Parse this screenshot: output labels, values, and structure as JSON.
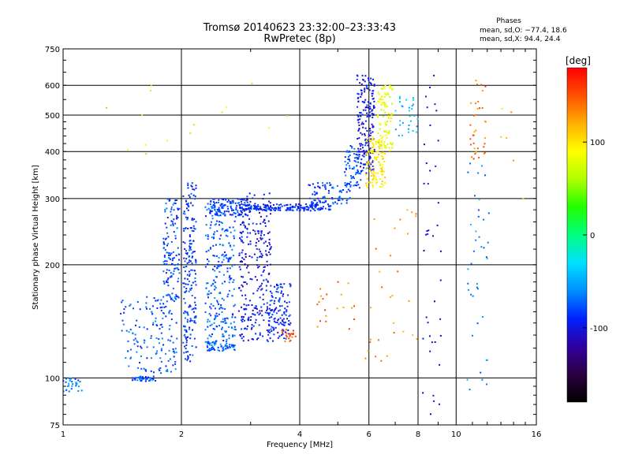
{
  "chart_data": {
    "type": "scatter",
    "title": "Tromsø 20140623 23:32:00–23:33:43",
    "subtitle": "RwPretec (8p)",
    "xlabel": "Frequency [MHz]",
    "ylabel": "Stationary phase Virtual Height [km]",
    "x_scale": "log",
    "y_scale": "log",
    "xlim": [
      1,
      16
    ],
    "ylim": [
      75,
      750
    ],
    "x_ticks": [
      1,
      2,
      4,
      6,
      8,
      10,
      16
    ],
    "x_tick_labels": [
      "1",
      "2",
      "4",
      "6",
      "8",
      "10",
      "16"
    ],
    "y_ticks": [
      75,
      100,
      200,
      300,
      400,
      500,
      600,
      750
    ],
    "y_tick_labels": [
      "75",
      "100",
      "200",
      "300",
      "400",
      "500",
      "600",
      "750"
    ],
    "grid": true,
    "phases_info": {
      "title": "Phases",
      "line_o": "mean, sd,O: −77.4, 18.6",
      "line_x": "mean, sd,X:  94.4, 24.4"
    },
    "colorbar": {
      "unit_label": "[deg]",
      "range": [
        -180,
        180
      ],
      "tick_values": [
        100,
        0,
        -100
      ],
      "tick_labels": [
        "100",
        "0",
        "-100"
      ],
      "colors": [
        "#000000",
        "#2a0040",
        "#3000a0",
        "#0020ff",
        "#0090ff",
        "#00e0ff",
        "#00ff80",
        "#20ff00",
        "#b0ff00",
        "#ffff00",
        "#ffb000",
        "#ff5000",
        "#ff0000"
      ]
    },
    "series": [
      {
        "clusters": [
          {
            "f": [
              1.0,
              1.12
            ],
            "h": [
              92,
              100
            ],
            "phase": -70,
            "n": 30
          },
          {
            "f": [
              1.5,
              1.72
            ],
            "h": [
              98,
              101
            ],
            "phase": -75,
            "n": 40
          },
          {
            "f": [
              1.4,
              1.95
            ],
            "h": [
              103,
              165
            ],
            "phase": -75,
            "n": 150
          },
          {
            "f": [
              1.8,
              1.98
            ],
            "h": [
              160,
              300
            ],
            "phase": -80,
            "n": 130
          },
          {
            "f": [
              2.02,
              2.18
            ],
            "h": [
              110,
              330
            ],
            "phase": -85,
            "n": 200
          },
          {
            "f": [
              2.3,
              2.75
            ],
            "h": [
              118,
              125
            ],
            "phase": -70,
            "n": 70
          },
          {
            "f": [
              2.3,
              2.75
            ],
            "h": [
              125,
              300
            ],
            "phase": -75,
            "n": 260
          },
          {
            "f": [
              2.8,
              3.4
            ],
            "h": [
              125,
              310
            ],
            "phase": -100,
            "n": 280
          },
          {
            "f": [
              3.3,
              3.8
            ],
            "h": [
              125,
              180
            ],
            "phase": -90,
            "n": 120
          },
          {
            "f": [
              2.35,
              2.95
            ],
            "h": [
              270,
              300
            ],
            "phase": -85,
            "n": 120
          },
          {
            "f": [
              2.9,
              4.8
            ],
            "h": [
              278,
              290
            ],
            "phase": -90,
            "n": 180
          },
          {
            "f": [
              4.2,
              5.4
            ],
            "h": [
              290,
              330
            ],
            "phase": -80,
            "n": 80
          },
          {
            "f": [
              5.2,
              5.75
            ],
            "h": [
              320,
              420
            ],
            "phase": -80,
            "n": 70
          },
          {
            "f": [
              5.6,
              6.2
            ],
            "h": [
              350,
              640
            ],
            "phase": -100,
            "n": 200
          },
          {
            "f": [
              5.9,
              6.6
            ],
            "h": [
              320,
              440
            ],
            "phase": 100,
            "n": 120
          },
          {
            "f": [
              6.3,
              6.9
            ],
            "h": [
              400,
              600
            ],
            "phase": 80,
            "n": 90
          },
          {
            "f": [
              7.0,
              8.0
            ],
            "h": [
              440,
              560
            ],
            "phase": -40,
            "n": 30
          },
          {
            "f": [
              8.2,
              9.2
            ],
            "h": [
              80,
              640
            ],
            "phase": -110,
            "n": 40
          },
          {
            "f": [
              10.8,
              12.0
            ],
            "h": [
              380,
              640
            ],
            "phase": 140,
            "n": 35
          },
          {
            "f": [
              10.6,
              12.2
            ],
            "h": [
              80,
              380
            ],
            "phase": -60,
            "n": 40
          },
          {
            "f": [
              4.4,
              5.6
            ],
            "h": [
              130,
              180
            ],
            "phase": 140,
            "n": 20
          },
          {
            "f": [
              3.6,
              3.95
            ],
            "h": [
              125,
              135
            ],
            "phase": 150,
            "n": 20
          },
          {
            "f": [
              5.8,
              8.2
            ],
            "h": [
              110,
              300
            ],
            "phase": 130,
            "n": 30
          },
          {
            "f": [
              1.2,
              3.8
            ],
            "h": [
              380,
              620
            ],
            "phase": 100,
            "n": 15
          },
          {
            "f": [
              13,
              15
            ],
            "h": [
              200,
              620
            ],
            "phase": 120,
            "n": 6
          }
        ]
      }
    ]
  }
}
